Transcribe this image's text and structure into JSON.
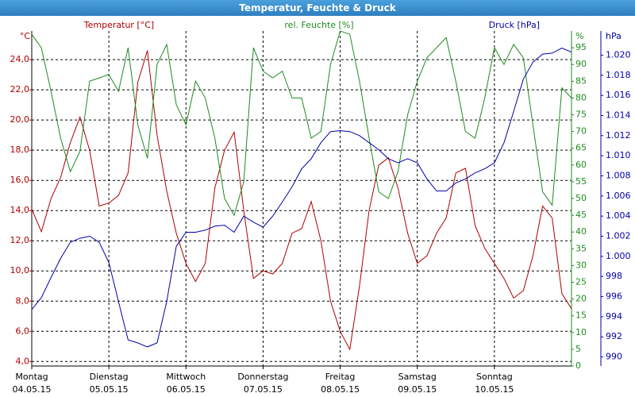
{
  "chart_data": {
    "type": "line",
    "title": "Temperatur, Feuchte & Druck",
    "xlim": [
      0,
      7
    ],
    "xticks": [
      {
        "value": 0,
        "label": "Montag",
        "date": "04.05.15"
      },
      {
        "value": 1,
        "label": "Dienstag",
        "date": "05.05.15"
      },
      {
        "value": 2,
        "label": "Mittwoch",
        "date": "06.05.15"
      },
      {
        "value": 3,
        "label": "Donnerstag",
        "date": "07.05.15"
      },
      {
        "value": 4,
        "label": "Freitag",
        "date": "08.05.15"
      },
      {
        "value": 5,
        "label": "Samstag",
        "date": "09.05.15"
      },
      {
        "value": 6,
        "label": "Sonntag",
        "date": "10.05.15"
      }
    ],
    "x": [
      0,
      0.125,
      0.25,
      0.375,
      0.5,
      0.625,
      0.75,
      0.875,
      1,
      1.125,
      1.25,
      1.375,
      1.5,
      1.625,
      1.75,
      1.875,
      2,
      2.125,
      2.25,
      2.375,
      2.5,
      2.625,
      2.75,
      2.875,
      3,
      3.125,
      3.25,
      3.375,
      3.5,
      3.625,
      3.75,
      3.875,
      4,
      4.125,
      4.25,
      4.375,
      4.5,
      4.625,
      4.75,
      4.875,
      5,
      5.125,
      5.25,
      5.375,
      5.5,
      5.625,
      5.75,
      5.875,
      6,
      6.125,
      6.25,
      6.375,
      6.5,
      6.625,
      6.75,
      6.875,
      7
    ],
    "ylabel": "°C",
    "ylim": [
      3.7,
      25.9
    ],
    "yticks": [
      {
        "value": 4,
        "label": "4,0"
      },
      {
        "value": 6,
        "label": "6,0"
      },
      {
        "value": 8,
        "label": "8,0"
      },
      {
        "value": 10,
        "label": "10,0"
      },
      {
        "value": 12,
        "label": "12,0"
      },
      {
        "value": 14,
        "label": "14,0"
      },
      {
        "value": 16,
        "label": "16,0"
      },
      {
        "value": 18,
        "label": "18,0"
      },
      {
        "value": 20,
        "label": "20,0"
      },
      {
        "value": 22,
        "label": "22,0"
      },
      {
        "value": 24,
        "label": "24,0"
      }
    ],
    "y2label": "%",
    "y2lim": [
      0,
      100
    ],
    "y2ticks": [
      0,
      5,
      10,
      15,
      20,
      25,
      30,
      35,
      40,
      45,
      50,
      55,
      60,
      65,
      70,
      75,
      80,
      85,
      90,
      95
    ],
    "y3label": "hPa",
    "y3lim": [
      989.1,
      1022.4
    ],
    "y3ticks": [
      990,
      992,
      994,
      996,
      998,
      {
        "value": 1000,
        "label": "1.000"
      },
      {
        "value": 1002,
        "label": "1.002"
      },
      {
        "value": 1004,
        "label": "1.004"
      },
      {
        "value": 1006,
        "label": "1.006"
      },
      {
        "value": 1008,
        "label": "1.008"
      },
      {
        "value": 1010,
        "label": "1.010"
      },
      {
        "value": 1012,
        "label": "1.012"
      },
      {
        "value": 1014,
        "label": "1.014"
      },
      {
        "value": 1016,
        "label": "1.016"
      },
      {
        "value": 1018,
        "label": "1.018"
      },
      {
        "value": 1020,
        "label": "1.020"
      }
    ],
    "grid": true,
    "series": [
      {
        "name": "Temperatur [°C]",
        "color": "#b00000",
        "axis": "y",
        "values": [
          14.1,
          12.6,
          14.8,
          16.2,
          18.5,
          20.2,
          18.0,
          14.3,
          14.5,
          15.0,
          16.5,
          22.5,
          24.6,
          19,
          15.3,
          12.5,
          10.5,
          9.3,
          10.5,
          15.5,
          18.0,
          19.2,
          14,
          9.5,
          10,
          9.8,
          10.5,
          12.5,
          12.8,
          14.6,
          12,
          8,
          6,
          4.8,
          9,
          14,
          17,
          17.5,
          15.5,
          12.5,
          10.5,
          11,
          12.5,
          13.5,
          16.5,
          16.8,
          13,
          11.5,
          10.5,
          9.5,
          8.2,
          8.7,
          11,
          14.3,
          13.5,
          8.5,
          7.5
        ]
      },
      {
        "name": "rel. Feuchte [%]",
        "color": "#1f8a1f",
        "axis": "y2",
        "values": [
          99,
          95,
          82,
          68,
          58,
          64,
          85,
          86,
          87,
          82,
          95,
          72,
          62,
          90,
          96,
          78,
          72,
          85,
          80,
          68,
          50,
          45,
          55,
          95,
          88,
          86,
          88,
          80,
          80,
          68,
          70,
          90,
          100,
          99,
          85,
          68,
          52,
          50,
          58,
          75,
          85,
          92,
          95,
          98,
          85,
          70,
          68,
          80,
          95,
          90,
          96,
          92,
          72,
          52,
          48,
          83,
          80
        ]
      },
      {
        "name": "Druck [hPa]",
        "color": "#0000a8",
        "axis": "y3",
        "values": [
          994.7,
          995.9,
          997.9,
          999.8,
          1001.4,
          1001.8,
          1002,
          1001.4,
          999.4,
          995.5,
          991.7,
          991.4,
          991,
          991.4,
          995.5,
          1001,
          1002.4,
          1002.4,
          1002.6,
          1003,
          1003.1,
          1002.4,
          1004,
          1003.4,
          1002.9,
          1004,
          1005.4,
          1006.9,
          1008.7,
          1009.7,
          1011.3,
          1012.4,
          1012.5,
          1012.4,
          1012,
          1011.3,
          1010.6,
          1009.7,
          1009.3,
          1009.7,
          1009.3,
          1007.7,
          1006.5,
          1006.5,
          1007.3,
          1007.7,
          1008.3,
          1008.7,
          1009.3,
          1011.3,
          1014.4,
          1017.6,
          1019.3,
          1020.1,
          1020.2,
          1020.7,
          1020.3
        ]
      }
    ]
  }
}
